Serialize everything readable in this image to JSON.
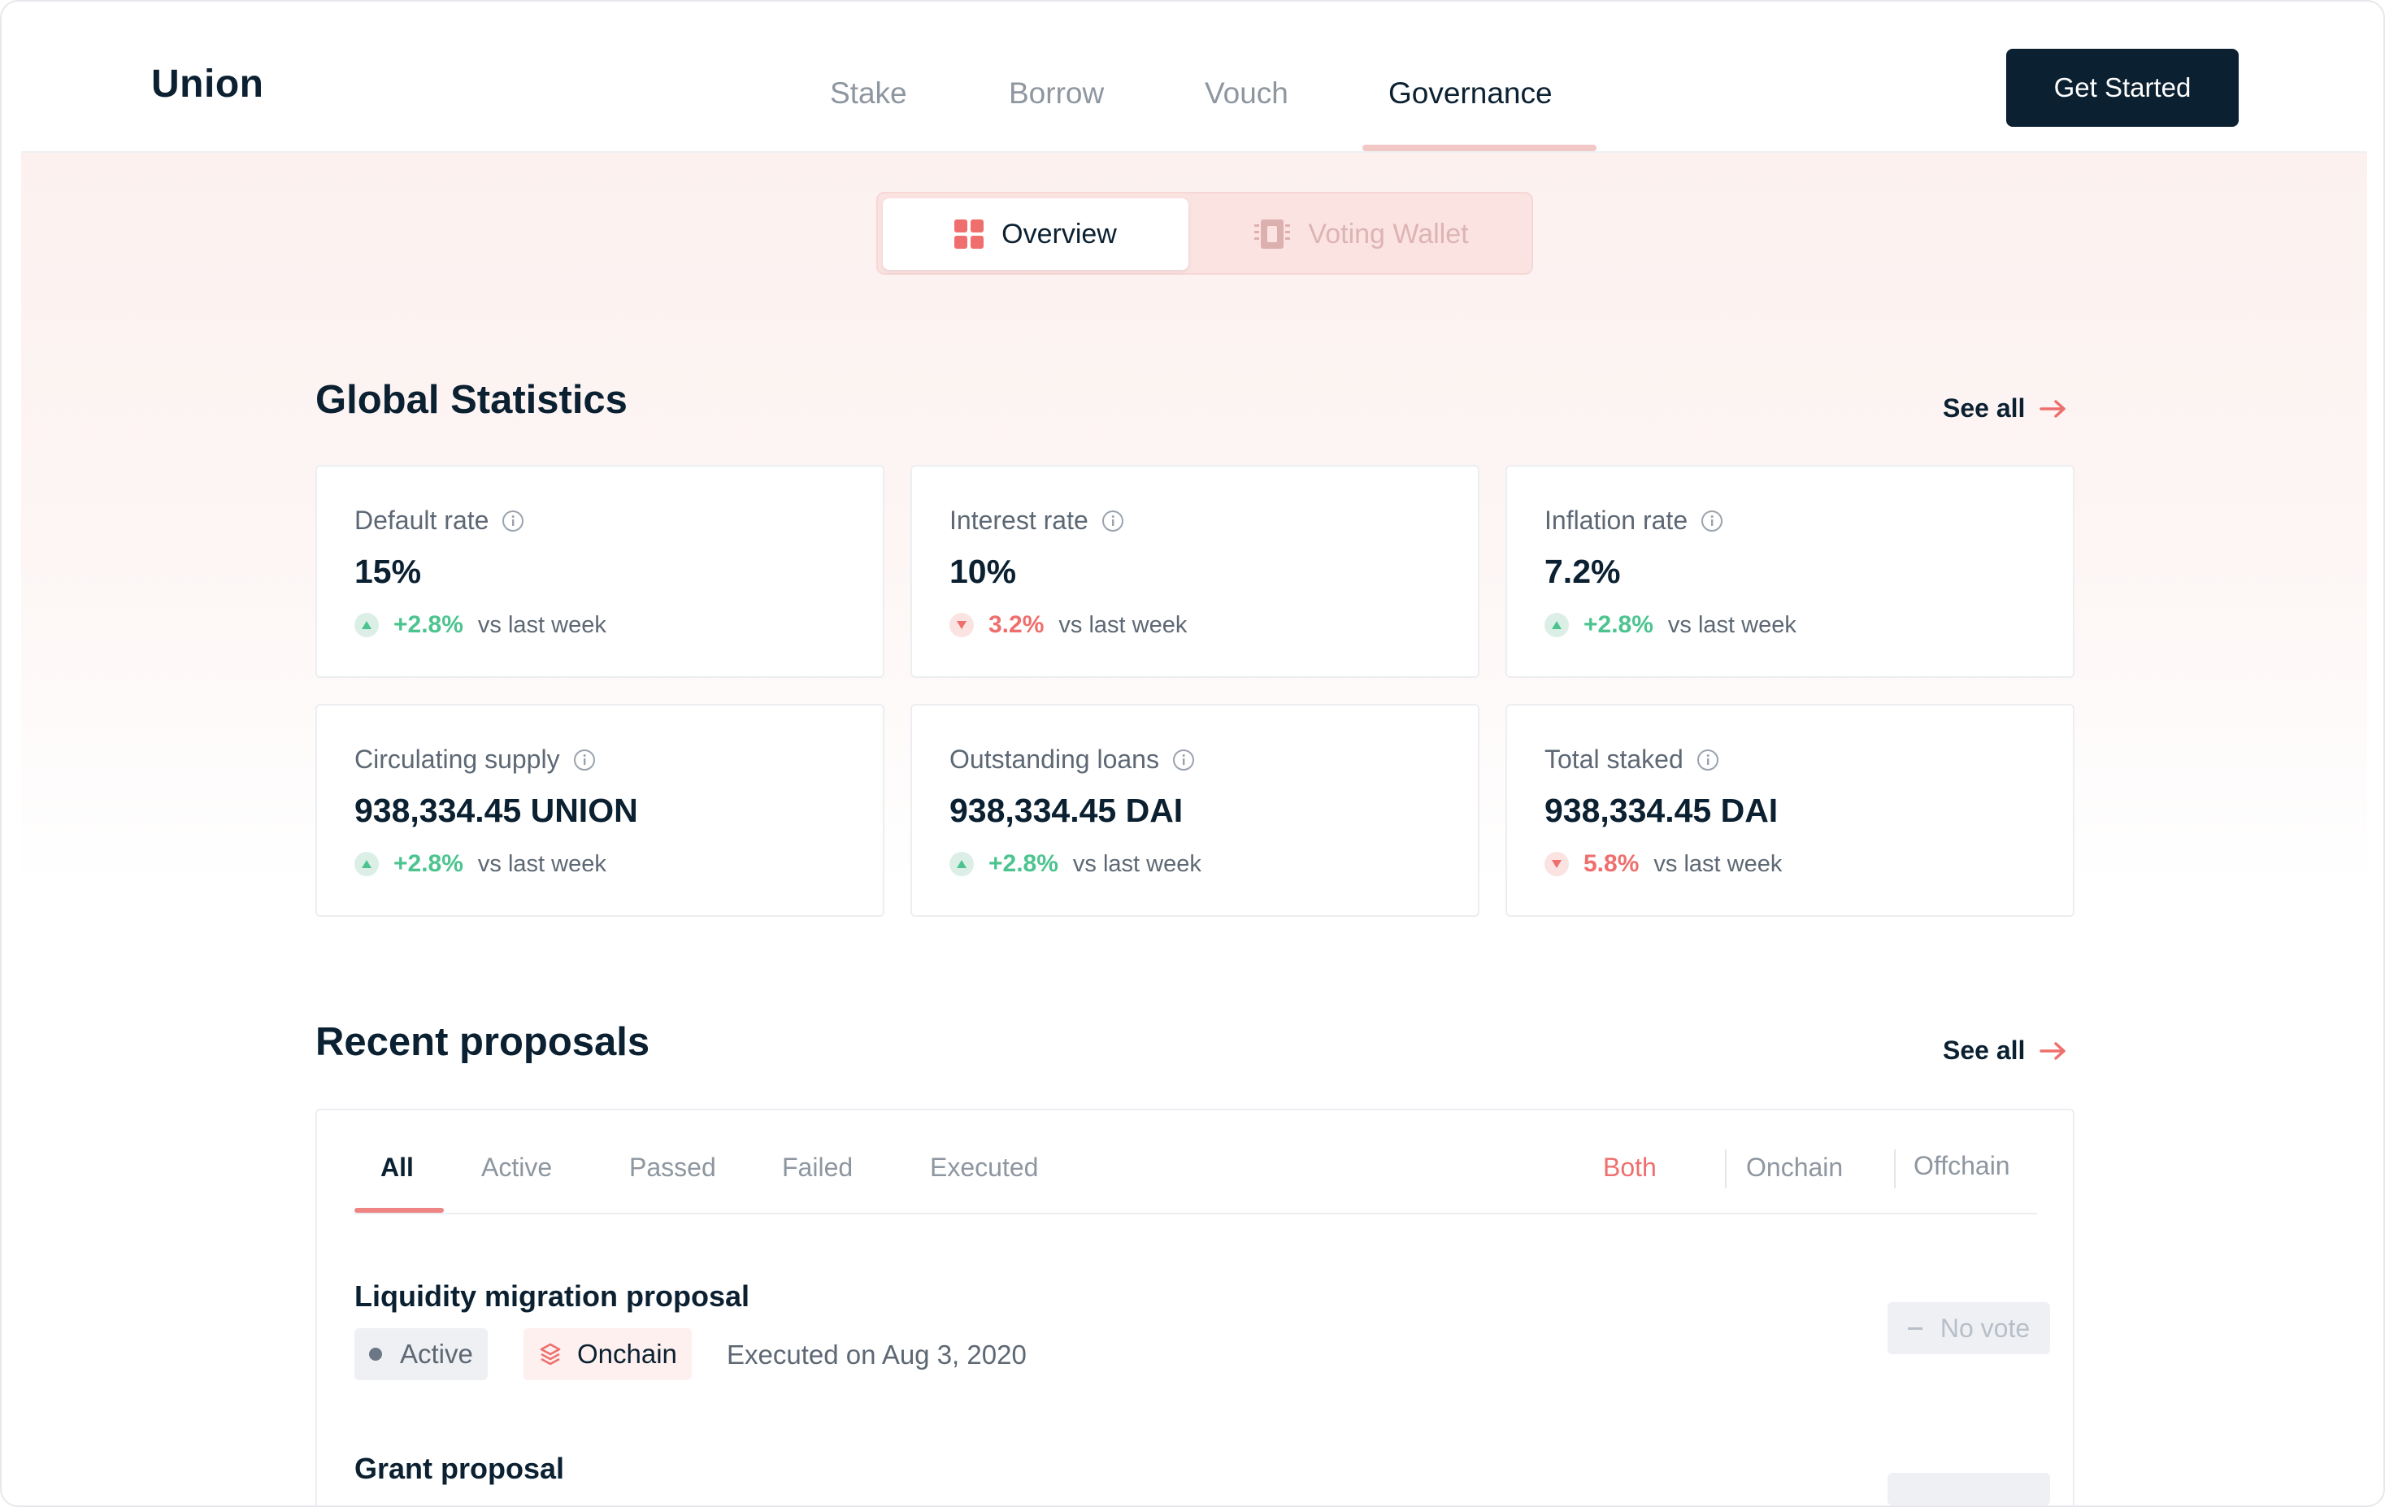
{
  "header": {
    "logo": "Union",
    "nav": [
      {
        "label": "Stake",
        "active": false
      },
      {
        "label": "Borrow",
        "active": false
      },
      {
        "label": "Vouch",
        "active": false
      },
      {
        "label": "Governance",
        "active": true
      }
    ],
    "cta_label": "Get Started"
  },
  "toggle": {
    "overview_label": "Overview",
    "voting_wallet_label": "Voting Wallet"
  },
  "global_stats": {
    "title": "Global Statistics",
    "see_all": "See all",
    "cards": [
      {
        "label": "Default rate",
        "value": "15%",
        "change": "+2.8%",
        "direction": "up",
        "change_text": "vs last week"
      },
      {
        "label": "Interest rate",
        "value": "10%",
        "change": "3.2%",
        "direction": "down",
        "change_text": "vs last week"
      },
      {
        "label": "Inflation rate",
        "value": "7.2%",
        "change": "+2.8%",
        "direction": "up",
        "change_text": "vs last week"
      },
      {
        "label": "Circulating supply",
        "value": "938,334.45 UNION",
        "change": "+2.8%",
        "direction": "up",
        "change_text": "vs last week"
      },
      {
        "label": "Outstanding loans",
        "value": "938,334.45 DAI",
        "change": "+2.8%",
        "direction": "up",
        "change_text": "vs last week"
      },
      {
        "label": "Total staked",
        "value": "938,334.45 DAI",
        "change": "5.8%",
        "direction": "down",
        "change_text": "vs last week"
      }
    ]
  },
  "proposals": {
    "title": "Recent proposals",
    "see_all": "See all",
    "status_tabs": [
      "All",
      "Active",
      "Passed",
      "Failed",
      "Executed"
    ],
    "source_tabs": [
      "Both",
      "Onchain",
      "Offchain"
    ],
    "items": [
      {
        "title": "Liquidity migration proposal",
        "status": "Active",
        "source": "Onchain",
        "executed_text": "Executed on Aug 3, 2020",
        "vote": "No vote"
      },
      {
        "title": "Grant proposal"
      }
    ]
  },
  "colors": {
    "navy": "#0b2031",
    "accent": "#ee6f6d",
    "positive": "#4dc48f"
  }
}
